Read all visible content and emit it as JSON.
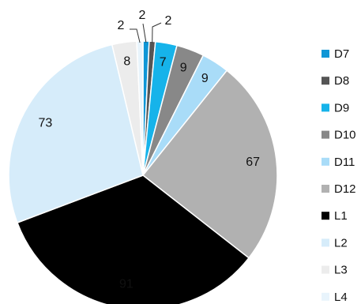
{
  "chart_data": {
    "type": "pie",
    "categories": [
      "D7",
      "D8",
      "D9",
      "D10",
      "D11",
      "D12",
      "L1",
      "L2",
      "L3",
      "L4"
    ],
    "values": [
      2,
      2,
      7,
      9,
      9,
      67,
      91,
      73,
      8,
      2
    ],
    "colors": [
      "#0f96d6",
      "#555555",
      "#16b3ea",
      "#888888",
      "#a9dcf8",
      "#b1b1b1",
      "#000000",
      "#d6ecfa",
      "#ececec",
      "#e8f4fc"
    ],
    "data_labels": [
      "2",
      "2",
      "7",
      "9",
      "9",
      "67",
      "91",
      "73",
      "8",
      "2"
    ],
    "legend_position": "right",
    "start_angle_deg": 0,
    "direction": "clockwise"
  }
}
